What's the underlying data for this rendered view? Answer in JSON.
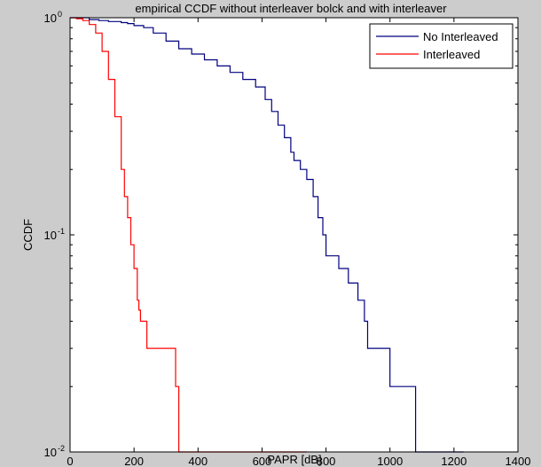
{
  "chart_data": {
    "type": "line",
    "title": "empirical CCDF without interleaver bolck and with interleaver",
    "xlabel": "PAPR [dB]",
    "ylabel": "CCDF",
    "xlim": [
      0,
      1400
    ],
    "ylim": [
      0.01,
      1
    ],
    "y_scale": "log",
    "grid": false,
    "legend_position": "top-right",
    "x_ticks": [
      0,
      200,
      400,
      600,
      800,
      1000,
      1200,
      1400
    ],
    "x_tick_labels": [
      "0",
      "200",
      "400",
      "600",
      "800",
      "1000",
      "1200",
      "1400"
    ],
    "y_ticks": [
      0.01,
      0.1,
      1
    ],
    "y_tick_labels": [
      {
        "base": "10",
        "exp": "-2"
      },
      {
        "base": "10",
        "exp": "-1"
      },
      {
        "base": "10",
        "exp": "0"
      }
    ],
    "series": [
      {
        "name": "No Interleaved",
        "color": "#000080",
        "step": true,
        "x": [
          0,
          60,
          90,
          120,
          160,
          180,
          200,
          230,
          260,
          300,
          340,
          380,
          420,
          460,
          500,
          540,
          580,
          610,
          630,
          650,
          670,
          690,
          700,
          720,
          740,
          760,
          775,
          790,
          800,
          840,
          870,
          900,
          920,
          930,
          960,
          1000,
          1040,
          1080,
          1230
        ],
        "y": [
          1,
          0.98,
          0.97,
          0.96,
          0.95,
          0.94,
          0.92,
          0.9,
          0.85,
          0.78,
          0.72,
          0.68,
          0.64,
          0.6,
          0.56,
          0.52,
          0.48,
          0.42,
          0.37,
          0.32,
          0.28,
          0.24,
          0.22,
          0.2,
          0.18,
          0.15,
          0.12,
          0.1,
          0.08,
          0.07,
          0.06,
          0.05,
          0.04,
          0.03,
          0.03,
          0.02,
          0.02,
          0.01,
          0.01
        ]
      },
      {
        "name": "Interleaved",
        "color": "#ff0000",
        "step": true,
        "x": [
          0,
          20,
          40,
          60,
          80,
          100,
          120,
          140,
          160,
          170,
          180,
          190,
          200,
          210,
          215,
          220,
          240,
          320,
          330,
          340,
          740
        ],
        "y": [
          1,
          0.99,
          0.97,
          0.93,
          0.85,
          0.7,
          0.52,
          0.35,
          0.2,
          0.15,
          0.12,
          0.09,
          0.07,
          0.05,
          0.045,
          0.04,
          0.03,
          0.03,
          0.02,
          0.01,
          0.01
        ]
      }
    ]
  }
}
